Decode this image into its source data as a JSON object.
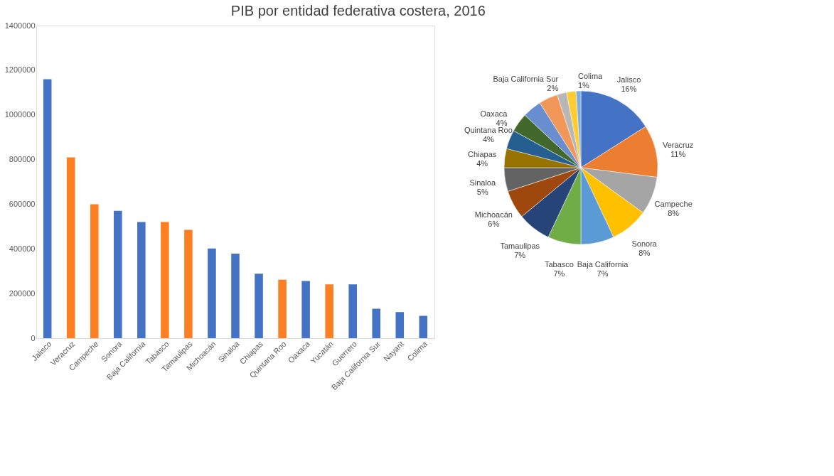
{
  "chart_data": [
    {
      "type": "bar",
      "title": "PIB por entidad federativa costera, 2016",
      "categories": [
        "Jalisco",
        "Veracruz",
        "Campeche",
        "Sonora",
        "Baja California",
        "Tabasco",
        "Tamaulipas",
        "Michoacán",
        "Sinaloa",
        "Chiapas",
        "Quintana Roo",
        "Oaxaca",
        "Yucatán",
        "Guerrero",
        "Baja California Sur",
        "Nayarit",
        "Colima"
      ],
      "values": [
        1160000,
        810000,
        600000,
        570000,
        520000,
        520000,
        485000,
        402000,
        379000,
        289000,
        262000,
        256000,
        241000,
        241000,
        132000,
        117000,
        100000
      ],
      "colors": [
        "#4472c4",
        "#fd7f23",
        "#fd7f23",
        "#4472c4",
        "#4472c4",
        "#fd7f23",
        "#fd7f23",
        "#4472c4",
        "#4472c4",
        "#4472c4",
        "#fd7f23",
        "#4472c4",
        "#fd7f23",
        "#4472c4",
        "#4472c4",
        "#4472c4",
        "#4472c4"
      ],
      "ylim": [
        0,
        1400000
      ],
      "yticks": [
        0,
        200000,
        400000,
        600000,
        800000,
        1000000,
        1200000,
        1400000
      ],
      "grid": false,
      "legend": false
    },
    {
      "type": "pie",
      "categories": [
        "Jalisco",
        "Veracruz",
        "Campeche",
        "Sonora",
        "Baja California",
        "Tabasco",
        "Tamaulipas",
        "Michoacán",
        "Sinaloa",
        "Chiapas",
        "Quintana Roo",
        "Oaxaca",
        null,
        null,
        "Baja California Sur",
        null,
        "Colima"
      ],
      "values": [
        16,
        11,
        8,
        8,
        7,
        7,
        7,
        6,
        5,
        4,
        4,
        4,
        4,
        4,
        2,
        2,
        1
      ],
      "value_labels": [
        "16%",
        "11%",
        "8%",
        "8%",
        "7%",
        "7%",
        "7%",
        "6%",
        "5%",
        "4%",
        "4%",
        "4%",
        null,
        null,
        "2%",
        null,
        "1%"
      ],
      "colors": [
        "#4472c4",
        "#ed7d31",
        "#a5a5a5",
        "#ffc000",
        "#5b9bd5",
        "#70ad47",
        "#264478",
        "#9e480e",
        "#636363",
        "#997300",
        "#255e91",
        "#43682b",
        "#698ed0",
        "#f1975a",
        "#b7b7b7",
        "#ffcd33",
        "#7cafdd"
      ],
      "legend": false
    }
  ]
}
